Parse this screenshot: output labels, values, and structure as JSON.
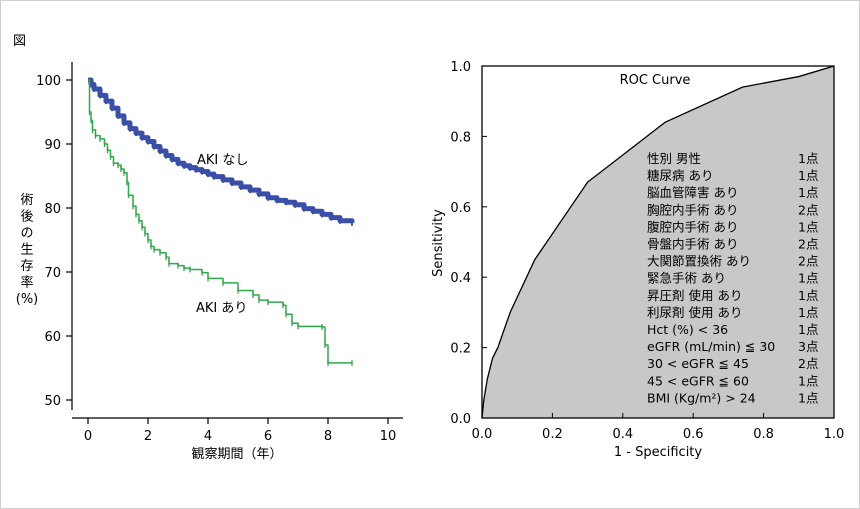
{
  "figure_label": "図",
  "chart_data": [
    {
      "type": "line",
      "subtype": "kaplan-meier",
      "xlabel": "観察期間（年）",
      "ylabel_lines": [
        "術",
        "後",
        "の",
        "生",
        "存",
        "率",
        "(%)"
      ],
      "xlim": [
        0,
        10
      ],
      "ylim": [
        50,
        100
      ],
      "x_ticks": [
        0,
        2,
        4,
        6,
        8,
        10
      ],
      "y_ticks": [
        50,
        60,
        70,
        80,
        90,
        100
      ],
      "series": [
        {
          "name": "AKI なし",
          "color": "#3a4fa8",
          "points": [
            [
              0,
              100
            ],
            [
              0.1,
              99.3
            ],
            [
              0.2,
              98.6
            ],
            [
              0.4,
              97.6
            ],
            [
              0.6,
              96.7
            ],
            [
              0.8,
              95.6
            ],
            [
              1.0,
              94.4
            ],
            [
              1.2,
              93.3
            ],
            [
              1.4,
              92.4
            ],
            [
              1.6,
              91.7
            ],
            [
              1.8,
              91.0
            ],
            [
              2.0,
              90.4
            ],
            [
              2.2,
              89.6
            ],
            [
              2.4,
              88.9
            ],
            [
              2.6,
              88.2
            ],
            [
              2.8,
              87.6
            ],
            [
              3.0,
              87.0
            ],
            [
              3.2,
              86.6
            ],
            [
              3.4,
              86.3
            ],
            [
              3.6,
              86.0
            ],
            [
              3.8,
              85.7
            ],
            [
              4.0,
              85.3
            ],
            [
              4.2,
              84.9
            ],
            [
              4.5,
              84.4
            ],
            [
              4.8,
              83.9
            ],
            [
              5.1,
              83.3
            ],
            [
              5.4,
              82.8
            ],
            [
              5.7,
              82.2
            ],
            [
              6.0,
              81.6
            ],
            [
              6.3,
              81.2
            ],
            [
              6.6,
              80.9
            ],
            [
              6.9,
              80.5
            ],
            [
              7.2,
              79.9
            ],
            [
              7.5,
              79.5
            ],
            [
              7.8,
              79.0
            ],
            [
              8.1,
              78.5
            ],
            [
              8.4,
              78.0
            ],
            [
              8.8,
              77.7
            ]
          ]
        },
        {
          "name": "AKI あり",
          "color": "#2eaa4a",
          "points": [
            [
              0,
              100
            ],
            [
              0.05,
              95.0
            ],
            [
              0.1,
              93.7
            ],
            [
              0.15,
              92.2
            ],
            [
              0.25,
              91.3
            ],
            [
              0.4,
              90.8
            ],
            [
              0.55,
              90.0
            ],
            [
              0.65,
              89.0
            ],
            [
              0.75,
              88.0
            ],
            [
              0.85,
              87.0
            ],
            [
              1.0,
              86.7
            ],
            [
              1.1,
              86.1
            ],
            [
              1.2,
              85.5
            ],
            [
              1.3,
              84.0
            ],
            [
              1.35,
              82.0
            ],
            [
              1.5,
              80.3
            ],
            [
              1.6,
              79.0
            ],
            [
              1.7,
              78.0
            ],
            [
              1.8,
              77.0
            ],
            [
              1.9,
              76.0
            ],
            [
              2.0,
              75.0
            ],
            [
              2.1,
              74.0
            ],
            [
              2.2,
              73.5
            ],
            [
              2.4,
              73.0
            ],
            [
              2.6,
              72.3
            ],
            [
              2.7,
              71.3
            ],
            [
              3.0,
              71.0
            ],
            [
              3.2,
              70.6
            ],
            [
              3.4,
              70.4
            ],
            [
              3.8,
              69.9
            ],
            [
              4.0,
              69.0
            ],
            [
              4.5,
              68.3
            ],
            [
              5.0,
              67.1
            ],
            [
              5.5,
              66.4
            ],
            [
              5.7,
              65.6
            ],
            [
              6.0,
              65.3
            ],
            [
              6.5,
              64.8
            ],
            [
              6.6,
              63.4
            ],
            [
              6.8,
              62.0
            ],
            [
              7.0,
              61.5
            ],
            [
              7.8,
              61.4
            ],
            [
              7.9,
              58.6
            ],
            [
              8.0,
              55.8
            ],
            [
              8.8,
              55.8
            ]
          ]
        }
      ],
      "annotations": [
        "AKI なし",
        "AKI あり"
      ]
    },
    {
      "type": "area",
      "subtype": "roc",
      "title": "ROC Curve",
      "xlabel": "1 - Specificity",
      "ylabel": "Sensitivity",
      "xlim": [
        0,
        1
      ],
      "ylim": [
        0,
        1
      ],
      "x_ticks": [
        "0.0",
        "0.2",
        "0.4",
        "0.6",
        "0.8",
        "1.0"
      ],
      "y_ticks": [
        "0.0",
        "0.2",
        "0.4",
        "0.6",
        "0.8",
        "1.0"
      ],
      "fill_color": "#c8c8c8",
      "points": [
        [
          0,
          0
        ],
        [
          0.005,
          0.05
        ],
        [
          0.015,
          0.11
        ],
        [
          0.03,
          0.17
        ],
        [
          0.045,
          0.2
        ],
        [
          0.08,
          0.3
        ],
        [
          0.15,
          0.45
        ],
        [
          0.3,
          0.67
        ],
        [
          0.52,
          0.84
        ],
        [
          0.74,
          0.94
        ],
        [
          0.9,
          0.97
        ],
        [
          1.0,
          1.0
        ]
      ],
      "score_table": [
        {
          "factor": "性別 男性",
          "points": "1点"
        },
        {
          "factor": "糖尿病 あり",
          "points": "1点"
        },
        {
          "factor": "脳血管障害 あり",
          "points": "1点"
        },
        {
          "factor": "胸腔内手術 あり",
          "points": "2点"
        },
        {
          "factor": "腹腔内手術 あり",
          "points": "1点"
        },
        {
          "factor": "骨盤内手術 あり",
          "points": "2点"
        },
        {
          "factor": "大関節置換術 あり",
          "points": "2点"
        },
        {
          "factor": "緊急手術 あり",
          "points": "1点"
        },
        {
          "factor": "昇圧剤 使用 あり",
          "points": "1点"
        },
        {
          "factor": "利尿剤 使用 あり",
          "points": "1点"
        },
        {
          "factor": "Hct (%) < 36",
          "points": "1点"
        },
        {
          "factor": "eGFR (mL/min) ≦ 30",
          "points": "3点"
        },
        {
          "factor": "30 < eGFR ≦ 45",
          "points": "2点"
        },
        {
          "factor": "45 < eGFR ≦ 60",
          "points": "1点"
        },
        {
          "factor": "BMI (Kg/m²) > 24",
          "points": "1点"
        }
      ]
    }
  ]
}
